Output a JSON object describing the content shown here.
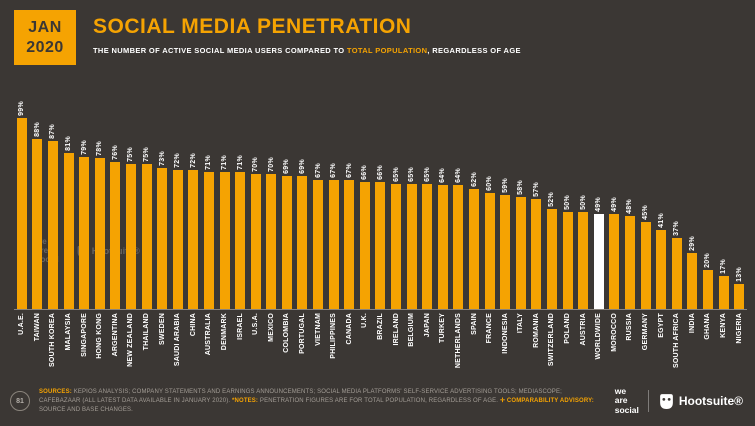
{
  "header": {
    "badge_month": "JAN",
    "badge_year": "2020",
    "title": "SOCIAL MEDIA PENETRATION",
    "subtitle_prefix": "THE NUMBER OF ACTIVE SOCIAL MEDIA USERS COMPARED TO ",
    "subtitle_highlight": "TOTAL POPULATION",
    "subtitle_suffix": ", REGARDLESS OF AGE"
  },
  "chart_data": {
    "type": "bar",
    "title": "SOCIAL MEDIA PENETRATION",
    "unit": "%",
    "ylim": [
      0,
      100
    ],
    "grid": false,
    "value_labels": "shown above each bar, rotated vertical",
    "bar_color": "#f5a302",
    "highlight_category": "WORLDWIDE",
    "highlight_color": "#ffffff",
    "categories": [
      "U.A.E.",
      "TAIWAN",
      "SOUTH KOREA",
      "MALAYSIA",
      "SINGAPORE",
      "HONG KONG",
      "ARGENTINA",
      "NEW ZEALAND",
      "THAILAND",
      "SWEDEN",
      "SAUDI ARABIA",
      "CHINA",
      "AUSTRALIA",
      "DENMARK",
      "ISRAEL",
      "U.S.A.",
      "MEXICO",
      "COLOMBIA",
      "PORTUGAL",
      "VIETNAM",
      "PHILIPPINES",
      "CANADA",
      "U.K.",
      "BRAZIL",
      "IRELAND",
      "BELGIUM",
      "JAPAN",
      "TURKEY",
      "NETHERLANDS",
      "SPAIN",
      "FRANCE",
      "INDONESIA",
      "ITALY",
      "ROMANIA",
      "SWITZERLAND",
      "POLAND",
      "AUSTRIA",
      "WORLDWIDE",
      "MOROCCO",
      "RUSSIA",
      "GERMANY",
      "EGYPT",
      "SOUTH AFRICA",
      "INDIA",
      "GHANA",
      "KENYA",
      "NIGERIA"
    ],
    "values": [
      99,
      88,
      87,
      81,
      79,
      78,
      76,
      75,
      75,
      73,
      72,
      72,
      71,
      71,
      71,
      70,
      70,
      69,
      69,
      67,
      67,
      67,
      66,
      66,
      65,
      65,
      65,
      64,
      64,
      62,
      60,
      59,
      58,
      57,
      52,
      50,
      50,
      49,
      49,
      48,
      45,
      41,
      37,
      29,
      20,
      17,
      13
    ]
  },
  "footer": {
    "page_number": "81",
    "sources_label": "SOURCES:",
    "sources_text": " KEPIOS ANALYSIS; COMPANY STATEMENTS AND EARNINGS ANNOUNCEMENTS; SOCIAL MEDIA PLATFORMS' SELF-SERVICE ADVERTISING TOOLS; MEDIASCOPE; CAFEBAZAAR (ALL LATEST DATA AVAILABLE IN JANUARY 2020). ",
    "notes_label": "*NOTES:",
    "notes_text": " PENETRATION FIGURES ARE FOR TOTAL POPULATION, REGARDLESS OF AGE. ",
    "advisory_label": "✛ COMPARABILITY ADVISORY:",
    "advisory_text": " SOURCE AND BASE CHANGES."
  },
  "brand": {
    "we_are_social_lines": [
      "we",
      "are",
      "social"
    ],
    "hootsuite_label": "Hootsuite®"
  },
  "colors": {
    "background": "#3b3734",
    "accent_orange": "#f5a302",
    "highlight_white": "#ffffff"
  }
}
